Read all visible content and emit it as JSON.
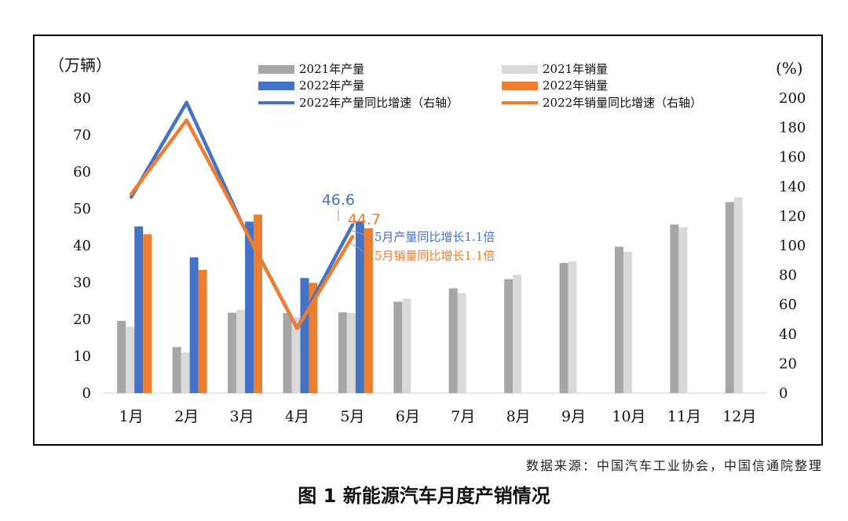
{
  "chart_data": {
    "type": "bar",
    "categories": [
      "1月",
      "2月",
      "3月",
      "4月",
      "5月",
      "6月",
      "7月",
      "8月",
      "9月",
      "10月",
      "11月",
      "12月"
    ],
    "y_left": {
      "unit": "（万辆）",
      "ticks": [
        0,
        10,
        20,
        30,
        40,
        50,
        60,
        70,
        80
      ],
      "range": [
        0,
        80
      ]
    },
    "y_right": {
      "unit": "(%)",
      "ticks": [
        0,
        20,
        40,
        60,
        80,
        100,
        120,
        140,
        160,
        180,
        200
      ],
      "range": [
        0,
        200
      ]
    },
    "series": [
      {
        "name": "2021年产量",
        "kind": "bar",
        "color": "#a6a6a6",
        "values": [
          19.6,
          12.5,
          21.8,
          21.7,
          21.9,
          24.8,
          28.4,
          30.9,
          35.3,
          39.7,
          45.7,
          51.8
        ]
      },
      {
        "name": "2021年销量",
        "kind": "bar",
        "color": "#d9d9d9",
        "values": [
          18.0,
          11.0,
          22.6,
          20.6,
          21.7,
          25.6,
          27.1,
          32.1,
          35.7,
          38.3,
          45.0,
          53.1
        ]
      },
      {
        "name": "2022年产量",
        "kind": "bar",
        "color": "#4472c4",
        "values": [
          45.2,
          36.8,
          46.5,
          31.2,
          46.6,
          null,
          null,
          null,
          null,
          null,
          null,
          null
        ]
      },
      {
        "name": "2022年销量",
        "kind": "bar",
        "color": "#ed7d31",
        "values": [
          43.1,
          33.4,
          48.4,
          29.9,
          44.7,
          null,
          null,
          null,
          null,
          null,
          null,
          null
        ]
      },
      {
        "name": "2022年产量同比增速（右轴）",
        "kind": "line",
        "axis": "right",
        "color": "#4472c4",
        "values": [
          133,
          197,
          115,
          44,
          114,
          null,
          null,
          null,
          null,
          null,
          null,
          null
        ]
      },
      {
        "name": "2022年销量同比增速（右轴）",
        "kind": "line",
        "axis": "right",
        "color": "#ed7d31",
        "values": [
          135,
          185,
          115,
          44,
          106,
          null,
          null,
          null,
          null,
          null,
          null,
          null
        ]
      }
    ],
    "annotations": [
      {
        "text": "46.6",
        "color": "#4472c4"
      },
      {
        "text": "44.7",
        "color": "#ed7d31"
      },
      {
        "text": "5月产量同比增长1.1倍",
        "color": "#4472c4"
      },
      {
        "text": "5月销量同比增长1.1倍",
        "color": "#ed7d31"
      }
    ],
    "legend": "top-center",
    "grid": false
  },
  "source": "数据来源：中国汽车工业协会，中国信通院整理",
  "caption": "图 1  新能源汽车月度产销情况"
}
